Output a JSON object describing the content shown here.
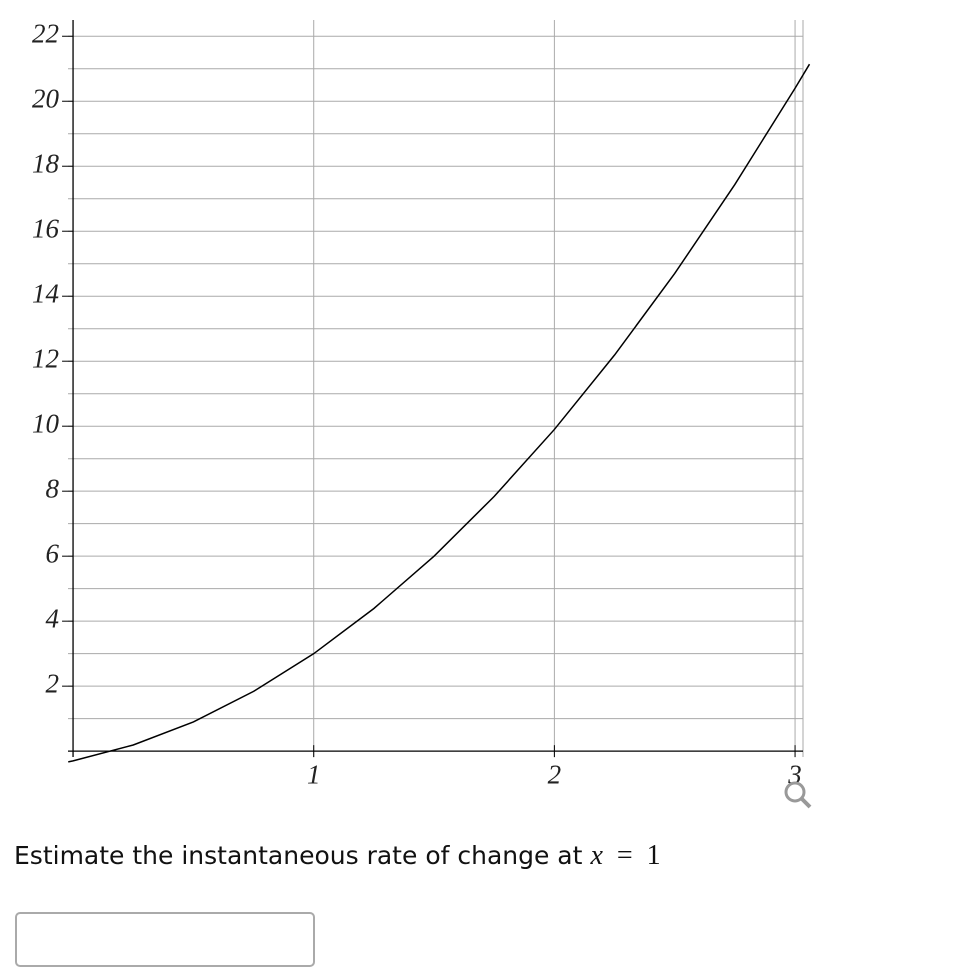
{
  "chart_data": {
    "type": "line",
    "x": [
      -0.02,
      0,
      0.25,
      0.5,
      0.75,
      1,
      1.25,
      1.5,
      1.75,
      2,
      2.25,
      2.5,
      2.75,
      3,
      3.06
    ],
    "series": [
      {
        "color": "#000000",
        "values": [
          -0.33,
          -0.3,
          0.19,
          0.9,
          1.84,
          3.0,
          4.39,
          6.0,
          7.84,
          9.9,
          12.19,
          14.7,
          17.44,
          20.4,
          21.14
        ]
      }
    ],
    "xlim": [
      -0.021,
      3.033
    ],
    "ylim": [
      -0.18,
      22.5
    ],
    "xticks": [
      1,
      2,
      3
    ],
    "yticks": [
      2,
      4,
      6,
      8,
      10,
      12,
      14,
      16,
      18,
      20,
      22
    ],
    "minor_ygrid": [
      1,
      3,
      5,
      7,
      9,
      11,
      13,
      15,
      17,
      19,
      21
    ],
    "grid": true
  },
  "question": {
    "prompt": "Estimate the instantaneous rate of change at",
    "variable": "x",
    "relation": "=",
    "value": "1"
  }
}
